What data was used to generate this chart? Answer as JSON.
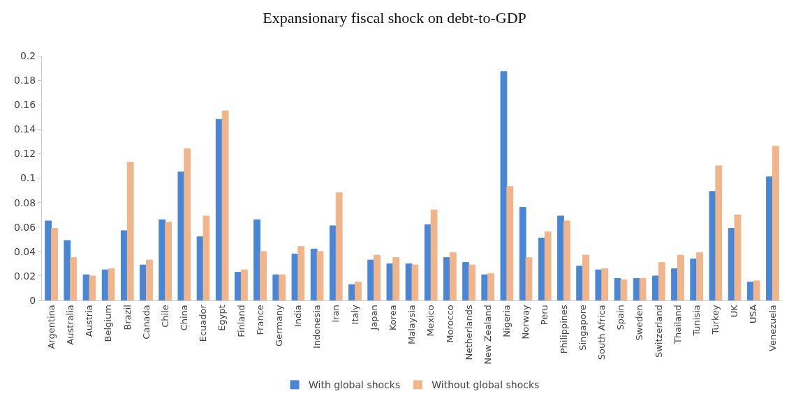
{
  "chart_data": {
    "type": "bar",
    "title": "Expansionary fiscal shock on debt-to-GDP",
    "categories": [
      "Argentina",
      "Australia",
      "Austria",
      "Belgium",
      "Brazil",
      "Canada",
      "Chile",
      "China",
      "Ecuador",
      "Egypt",
      "Finland",
      "France",
      "Germany",
      "India",
      "Indonesia",
      "Iran",
      "Italy",
      "Japan",
      "Korea",
      "Malaysia",
      "Mexico",
      "Morocco",
      "Netherlands",
      "New Zealand",
      "Nigeria",
      "Norway",
      "Peru",
      "Philippines",
      "Singapore",
      "South Africa",
      "Spain",
      "Sweden",
      "Switzerland",
      "Thailand",
      "Tunisia",
      "Turkey",
      "UK",
      "USA",
      "Venezuela"
    ],
    "series": [
      {
        "name": "With global shocks",
        "color": "#4a86d6",
        "values": [
          0.065,
          0.049,
          0.021,
          0.025,
          0.057,
          0.029,
          0.066,
          0.105,
          0.052,
          0.148,
          0.023,
          0.066,
          0.021,
          0.038,
          0.042,
          0.061,
          0.013,
          0.033,
          0.03,
          0.03,
          0.062,
          0.035,
          0.031,
          0.021,
          0.187,
          0.076,
          0.051,
          0.069,
          0.028,
          0.025,
          0.018,
          0.018,
          0.02,
          0.026,
          0.034,
          0.089,
          0.059,
          0.015,
          0.101
        ]
      },
      {
        "name": "Without global shocks",
        "color": "#f0b58a",
        "values": [
          0.059,
          0.035,
          0.02,
          0.026,
          0.113,
          0.033,
          0.064,
          0.124,
          0.069,
          0.155,
          0.025,
          0.04,
          0.021,
          0.044,
          0.04,
          0.088,
          0.015,
          0.037,
          0.035,
          0.029,
          0.074,
          0.039,
          0.029,
          0.022,
          0.093,
          0.035,
          0.056,
          0.065,
          0.037,
          0.026,
          0.017,
          0.018,
          0.031,
          0.037,
          0.039,
          0.11,
          0.07,
          0.016,
          0.126
        ]
      }
    ],
    "ylim": [
      0,
      0.2
    ],
    "yticks": [
      0,
      0.02,
      0.04,
      0.06,
      0.08,
      0.1,
      0.12,
      0.14,
      0.16,
      0.18,
      0.2
    ],
    "grid": false,
    "legend": "bottom"
  }
}
